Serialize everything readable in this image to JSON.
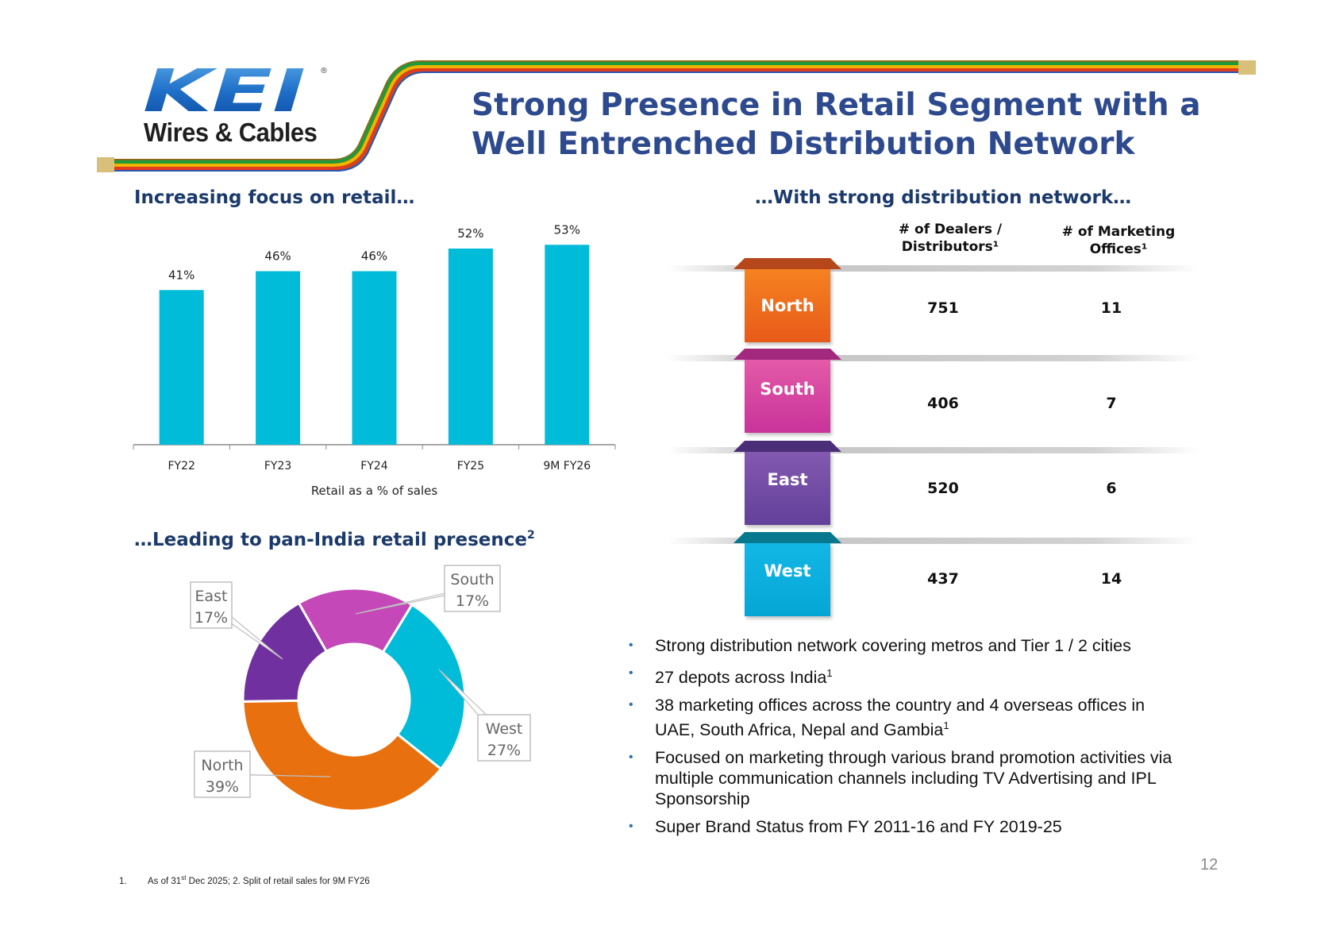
{
  "logo": {
    "mark_text": "KEI",
    "registered": "®",
    "tagline": "Wires & Cables"
  },
  "title": {
    "line1": "Strong Presence in Retail Segment with a",
    "line2": "Well Entrenched Distribution Network"
  },
  "sections": {
    "retail_focus": "Increasing focus on retail…",
    "distribution": "…With strong distribution network…",
    "pan_india": "…Leading to pan-India retail presence",
    "pan_india_sup": "2"
  },
  "chart_data": [
    {
      "type": "bar",
      "categories": [
        "FY22",
        "FY23",
        "FY24",
        "FY25",
        "9M FY26"
      ],
      "values": [
        41,
        46,
        46,
        52,
        53
      ],
      "value_labels": [
        "41%",
        "46%",
        "46%",
        "52%",
        "53%"
      ],
      "xlabel": "Retail as a % of sales",
      "ylabel": "",
      "ylim": [
        0,
        60
      ],
      "grid": false,
      "color": "#00bcd9"
    },
    {
      "type": "pie",
      "style": "donut",
      "title": "Split of retail sales for 9M FY26",
      "labels": [
        "South",
        "West",
        "North",
        "East"
      ],
      "values": [
        17,
        27,
        39,
        17
      ],
      "value_labels": [
        "17%",
        "27%",
        "39%",
        "17%"
      ],
      "colors": [
        "#c548b8",
        "#00bcd9",
        "#e8700e",
        "#7030a0"
      ]
    }
  ],
  "distribution_table": {
    "headers": [
      "# of Dealers / Distributors¹",
      "# of Marketing Offices¹"
    ],
    "header_lines": [
      [
        "# of Dealers /",
        "Distributors¹"
      ],
      [
        "# of Marketing",
        "Offices¹"
      ]
    ],
    "rows": [
      {
        "region": "North",
        "dealers": "751",
        "offices": "11",
        "color_top": "#f58220",
        "color_bottom": "#e85a1a",
        "ear": "#b6471a"
      },
      {
        "region": "South",
        "dealers": "406",
        "offices": "7",
        "color_top": "#e45aa8",
        "color_bottom": "#c8339a",
        "ear": "#a2297e"
      },
      {
        "region": "East",
        "dealers": "520",
        "offices": "6",
        "color_top": "#8359b0",
        "color_bottom": "#63409a",
        "ear": "#4a2f78"
      },
      {
        "region": "West",
        "dealers": "437",
        "offices": "14",
        "color_top": "#12b7e6",
        "color_bottom": "#05a6d4",
        "ear": "#08788e"
      }
    ]
  },
  "bullets": [
    {
      "text": "Strong distribution network covering metros and Tier 1 / 2 cities",
      "sup": ""
    },
    {
      "text": "27 depots across India",
      "sup": "1"
    },
    {
      "text": "38 marketing offices across the country and 4 overseas offices in UAE, South Africa, Nepal and Gambia",
      "sup": "1"
    },
    {
      "text": "Focused on marketing through various brand promotion activities via multiple communication channels including TV Advertising and IPL Sponsorship",
      "sup": ""
    },
    {
      "text": "Super Brand Status from FY 2011-16 and FY 2019-25",
      "sup": ""
    }
  ],
  "bullet_marker": "•",
  "page_number": "12",
  "footnote": {
    "num": "1.",
    "pre": "As of 31",
    "sup": "st",
    "post": " Dec 2025; 2. Split of retail sales for 9M FY26"
  },
  "colors": {
    "title_blue": "#2e4a8e",
    "section_blue": "#1b3a6b",
    "bar": "#00bcd9"
  }
}
